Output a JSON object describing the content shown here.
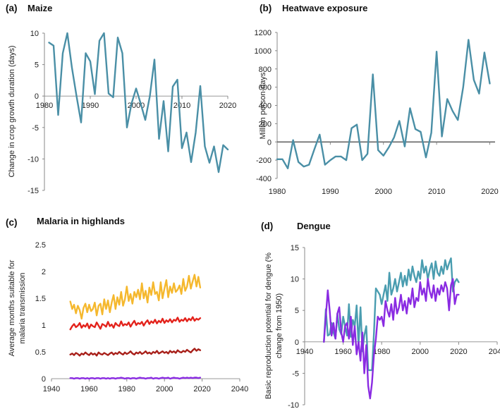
{
  "chart_data": [
    {
      "type": "line",
      "panel": "(a)",
      "title": "Maize",
      "ylabel": "Change in crop growth duration (days)",
      "xlabel": "",
      "xlim": [
        1980,
        2020
      ],
      "ylim": [
        -15,
        10
      ],
      "xticks": [
        1980,
        1990,
        2000,
        2010,
        2020
      ],
      "yticks": [
        -15,
        -10,
        -5,
        0,
        5,
        10
      ],
      "zero_line": true,
      "series": [
        {
          "name": "maize",
          "color": "#4a8fa6",
          "x": [
            1981,
            1982,
            1983,
            1984,
            1985,
            1986,
            1987,
            1988,
            1989,
            1990,
            1991,
            1992,
            1993,
            1994,
            1995,
            1996,
            1997,
            1998,
            1999,
            2000,
            2001,
            2002,
            2003,
            2004,
            2005,
            2006,
            2007,
            2008,
            2009,
            2010,
            2011,
            2012,
            2013,
            2014,
            2015,
            2016,
            2017,
            2018,
            2019,
            2020
          ],
          "values": [
            8.5,
            8.0,
            -3.0,
            6.8,
            10.0,
            4.5,
            0.0,
            -4.2,
            6.8,
            5.5,
            0.3,
            8.8,
            10.0,
            0.4,
            -0.2,
            9.3,
            6.8,
            -5.0,
            -1.2,
            1.2,
            -1.2,
            -3.8,
            0.0,
            5.8,
            -6.8,
            -0.8,
            -8.8,
            1.5,
            2.6,
            -8.3,
            -5.8,
            -10.5,
            -5.8,
            1.6,
            -8.0,
            -10.6,
            -8.0,
            -12.1,
            -7.8,
            -8.5
          ]
        }
      ]
    },
    {
      "type": "line",
      "panel": "(b)",
      "title": "Heatwave exposure",
      "ylabel": "Million person-days",
      "xlabel": "",
      "xlim": [
        1980,
        2021
      ],
      "ylim": [
        -400,
        1200
      ],
      "xticks": [
        1980,
        1990,
        2000,
        2010,
        2020
      ],
      "yticks": [
        -400,
        -200,
        0,
        200,
        400,
        600,
        800,
        1000,
        1200
      ],
      "zero_line": true,
      "series": [
        {
          "name": "heatwave",
          "color": "#4a8fa6",
          "x": [
            1980,
            1981,
            1982,
            1983,
            1984,
            1985,
            1986,
            1987,
            1988,
            1989,
            1990,
            1991,
            1992,
            1993,
            1994,
            1995,
            1996,
            1997,
            1998,
            1999,
            2000,
            2001,
            2002,
            2003,
            2004,
            2005,
            2006,
            2007,
            2008,
            2009,
            2010,
            2011,
            2012,
            2013,
            2014,
            2015,
            2016,
            2017,
            2018,
            2019,
            2020
          ],
          "values": [
            -190,
            -190,
            -290,
            20,
            -220,
            -270,
            -250,
            -80,
            80,
            -250,
            -200,
            -160,
            -160,
            -200,
            150,
            190,
            -200,
            -130,
            740,
            -90,
            -150,
            -60,
            50,
            230,
            -50,
            370,
            140,
            110,
            -170,
            100,
            990,
            60,
            470,
            340,
            240,
            600,
            1120,
            680,
            530,
            980,
            640
          ]
        }
      ]
    },
    {
      "type": "line",
      "panel": "(c)",
      "title": "Malaria in highlands",
      "ylabel": "Average months suitable for malaria transmission",
      "xlabel": "",
      "xlim": [
        1940,
        2040
      ],
      "ylim": [
        0,
        2.5
      ],
      "xticks": [
        1940,
        1960,
        1980,
        2000,
        2020,
        2040
      ],
      "yticks": [
        0,
        0.5,
        1,
        1.5,
        2,
        2.5
      ],
      "zero_line": false,
      "series": [
        {
          "name": "yellow",
          "color": "#f5b82e",
          "x0": 1950,
          "x1": 2019,
          "values": [
            1.44,
            1.3,
            1.38,
            1.22,
            1.36,
            1.28,
            1.12,
            1.32,
            1.4,
            1.24,
            1.38,
            1.26,
            1.3,
            1.42,
            1.18,
            1.36,
            1.4,
            1.2,
            1.48,
            1.3,
            1.46,
            1.24,
            1.42,
            1.56,
            1.3,
            1.52,
            1.38,
            1.62,
            1.36,
            1.48,
            1.72,
            1.45,
            1.58,
            1.4,
            1.62,
            1.52,
            1.66,
            1.48,
            1.78,
            1.5,
            1.64,
            1.42,
            1.7,
            1.56,
            1.8,
            1.58,
            1.62,
            1.46,
            1.8,
            1.5,
            1.68,
            1.84,
            1.52,
            1.72,
            1.6,
            1.78,
            1.62,
            1.66,
            1.74,
            1.58,
            1.86,
            1.64,
            1.72,
            1.92,
            1.68,
            1.82,
            1.94,
            1.72,
            1.9,
            1.7
          ]
        },
        {
          "name": "red",
          "color": "#e3231c",
          "x0": 1950,
          "x1": 2019,
          "values": [
            0.92,
            0.98,
            1.02,
            0.96,
            0.99,
            1.04,
            0.95,
            1.0,
            0.97,
            1.03,
            0.94,
            1.01,
            0.98,
            0.96,
            1.05,
            0.99,
            0.93,
            1.02,
            1.0,
            0.97,
            1.06,
            0.98,
            1.01,
            0.95,
            1.04,
            1.0,
            0.98,
            1.07,
            0.99,
            1.02,
            1.0,
            1.05,
            0.97,
            1.03,
            1.08,
            1.0,
            1.04,
            1.02,
            1.06,
            0.99,
            1.05,
            1.09,
            1.02,
            1.07,
            1.04,
            1.1,
            1.03,
            1.08,
            1.05,
            1.12,
            1.04,
            1.09,
            1.06,
            1.11,
            1.05,
            1.1,
            1.08,
            1.14,
            1.06,
            1.1,
            1.08,
            1.13,
            1.07,
            1.12,
            1.09,
            1.15,
            1.08,
            1.12,
            1.1,
            1.13
          ]
        },
        {
          "name": "dark red",
          "color": "#a8201a",
          "x0": 1950,
          "x1": 2019,
          "values": [
            0.45,
            0.47,
            0.44,
            0.48,
            0.46,
            0.43,
            0.47,
            0.45,
            0.49,
            0.46,
            0.44,
            0.48,
            0.45,
            0.47,
            0.43,
            0.49,
            0.46,
            0.45,
            0.48,
            0.46,
            0.44,
            0.47,
            0.49,
            0.45,
            0.48,
            0.46,
            0.5,
            0.47,
            0.45,
            0.49,
            0.46,
            0.48,
            0.51,
            0.47,
            0.45,
            0.49,
            0.47,
            0.5,
            0.46,
            0.48,
            0.51,
            0.47,
            0.49,
            0.46,
            0.5,
            0.48,
            0.52,
            0.47,
            0.49,
            0.51,
            0.48,
            0.5,
            0.47,
            0.52,
            0.49,
            0.51,
            0.48,
            0.53,
            0.5,
            0.49,
            0.52,
            0.5,
            0.54,
            0.51,
            0.49,
            0.53,
            0.56,
            0.52,
            0.55,
            0.53
          ]
        },
        {
          "name": "purple",
          "color": "#8a2be2",
          "x0": 1950,
          "x1": 2019,
          "values": [
            0.01,
            0.01,
            0.0,
            0.01,
            0.01,
            0.0,
            0.01,
            0.01,
            0.0,
            0.01,
            0.0,
            0.01,
            0.01,
            0.0,
            0.01,
            0.01,
            0.0,
            0.01,
            0.01,
            0.0,
            0.01,
            0.0,
            0.01,
            0.01,
            0.0,
            0.01,
            0.01,
            0.02,
            0.01,
            0.0,
            0.01,
            0.01,
            0.0,
            0.01,
            0.01,
            0.0,
            0.01,
            0.02,
            0.01,
            0.01,
            0.0,
            0.01,
            0.01,
            0.02,
            0.0,
            0.01,
            0.01,
            0.0,
            0.01,
            0.02,
            0.01,
            0.01,
            0.02,
            0.0,
            0.01,
            0.02,
            0.01,
            0.01,
            0.0,
            0.01,
            0.02,
            0.01,
            0.02,
            0.01,
            0.02,
            0.01,
            0.02,
            0.02,
            0.01,
            0.02
          ]
        }
      ]
    },
    {
      "type": "line",
      "panel": "(d)",
      "title": "Dengue",
      "ylabel": "Basic reproduction potential for dengue (% change from 1950)",
      "xlabel": "",
      "xlim": [
        1940,
        2040
      ],
      "ylim": [
        -10,
        15
      ],
      "xticks": [
        1940,
        1960,
        1980,
        2000,
        2020,
        2040
      ],
      "yticks": [
        -10,
        -5,
        0,
        5,
        10,
        15
      ],
      "zero_line": true,
      "series": [
        {
          "name": "teal",
          "color": "#4a9db0",
          "x0": 1950,
          "x1": 2020,
          "values": [
            0,
            5.2,
            1.0,
            1.2,
            3.0,
            1.5,
            0.5,
            4.5,
            2.0,
            1.2,
            4.0,
            2.5,
            1.0,
            6.0,
            0.8,
            3.5,
            2.5,
            5.8,
            -0.5,
            5.5,
            -1.5,
            1.0,
            2.5,
            -4.5,
            -4.5,
            -4.5,
            1.5,
            8.5,
            8.0,
            7.5,
            6.0,
            7.5,
            9.0,
            6.5,
            11.0,
            7.5,
            8.5,
            10.0,
            8.0,
            9.5,
            11.0,
            8.8,
            10.5,
            9.0,
            11.5,
            9.8,
            12.0,
            10.5,
            9.5,
            11.2,
            10.0,
            13.0,
            11.0,
            12.0,
            10.0,
            11.5,
            12.5,
            10.0,
            12.8,
            11.0,
            10.5,
            12.0,
            10.8,
            13.0,
            11.5,
            12.5,
            13.3,
            8.0,
            9.5,
            10.0,
            9.5
          ]
        },
        {
          "name": "purple",
          "color": "#8a2be2",
          "x0": 1950,
          "x1": 2020,
          "values": [
            0,
            4.0,
            8.2,
            5.0,
            1.0,
            3.0,
            0.5,
            4.5,
            5.5,
            1.5,
            0.0,
            2.5,
            3.0,
            0.5,
            4.0,
            -0.5,
            2.5,
            -2.0,
            0.0,
            -3.0,
            1.5,
            -5.0,
            -0.5,
            -7.0,
            -9.0,
            -6.5,
            -2.0,
            0.5,
            4.0,
            3.5,
            4.0,
            2.5,
            6.5,
            5.0,
            4.0,
            6.0,
            3.5,
            7.0,
            4.5,
            5.5,
            7.5,
            5.0,
            6.5,
            4.5,
            7.0,
            6.0,
            8.5,
            5.5,
            7.0,
            6.5,
            9.5,
            7.5,
            8.5,
            6.5,
            10.0,
            8.0,
            7.0,
            9.0,
            6.5,
            8.5,
            7.5,
            9.0,
            8.0,
            9.5,
            8.5,
            5.0,
            9.0,
            10.0,
            6.0,
            7.5,
            7.5
          ]
        }
      ]
    }
  ]
}
